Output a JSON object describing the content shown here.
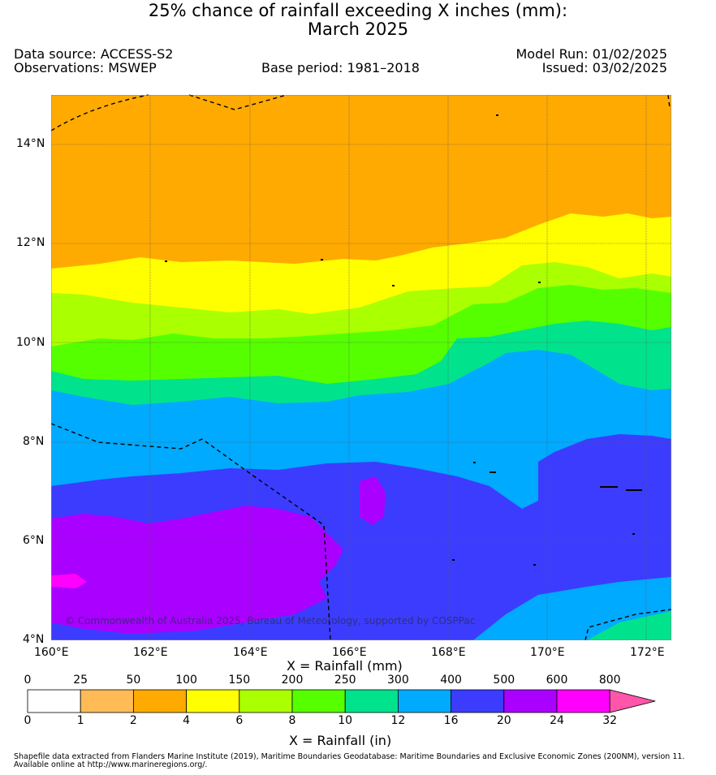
{
  "title": {
    "line1": "25% chance of rainfall exceeding X inches (mm):",
    "line2": "March 2025"
  },
  "meta": {
    "data_source": "Data source: ACCESS-S2",
    "observations": "Observations: MSWEP",
    "base_period": "Base period: 1981–2018",
    "model_run": "Model Run: 01/02/2025",
    "issued": "Issued: 03/02/2025"
  },
  "map": {
    "lat_labels": [
      "14°N",
      "12°N",
      "10°N",
      "8°N",
      "6°N",
      "4°N"
    ],
    "lon_labels": [
      "160°E",
      "162°E",
      "164°E",
      "166°E",
      "168°E",
      "170°E",
      "172°E"
    ],
    "copyright": "© Commonwealth of Australia 2025, Bureau of Meteorology, supported by COSPPac",
    "region_extent": {
      "lon": [
        160,
        172.5
      ],
      "lat": [
        4,
        15
      ]
    }
  },
  "colorbar": {
    "mm_labels": [
      "0",
      "25",
      "50",
      "100",
      "150",
      "200",
      "250",
      "300",
      "400",
      "500",
      "600",
      "800"
    ],
    "in_labels": [
      "0",
      "1",
      "2",
      "4",
      "6",
      "8",
      "10",
      "12",
      "16",
      "20",
      "24",
      "32"
    ],
    "colors": [
      "#ffffff",
      "#ffbb55",
      "#ffaa00",
      "#ffff00",
      "#aaff00",
      "#55ff00",
      "#00e38c",
      "#00aaff",
      "#3c3cff",
      "#aa00ff",
      "#ff00ff",
      "#ff55aa"
    ],
    "mm_title": "X = Rainfall (mm)",
    "in_title": "X = Rainfall (in)"
  },
  "footer": {
    "line1": "Shapefile data extracted from Flanders Marine Institute (2019), Maritime Boundaries Geodatabase: Maritime Boundaries and Exclusive Economic Zones (200NM), version 11.",
    "line2": "Available online at http://www.marineregions.org/."
  }
}
